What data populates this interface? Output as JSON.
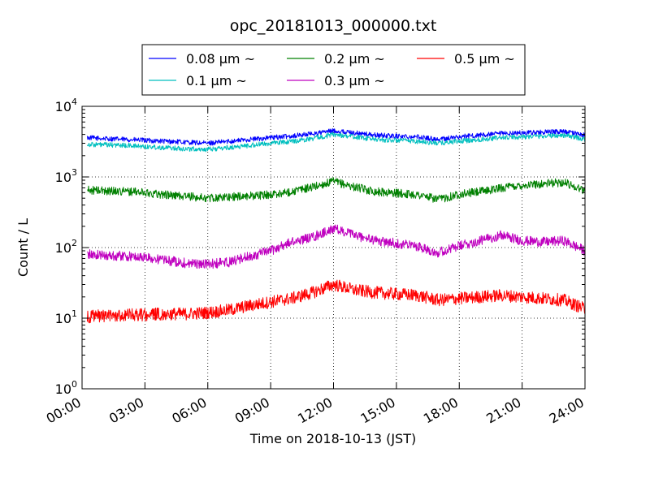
{
  "chart_data": {
    "type": "line",
    "title": "opc_20181013_000000.txt",
    "xlabel": "Time on 2018-10-13 (JST)",
    "ylabel": "Count / L",
    "yscale": "log",
    "xlim": [
      "00:00",
      "24:00"
    ],
    "ylim": [
      1,
      10000
    ],
    "x_ticks": [
      "00:00",
      "03:00",
      "06:00",
      "09:00",
      "12:00",
      "15:00",
      "18:00",
      "21:00",
      "24:00"
    ],
    "y_ticks": [
      {
        "value": 1,
        "base": "10",
        "exp": "0"
      },
      {
        "value": 10,
        "base": "10",
        "exp": "1"
      },
      {
        "value": 100,
        "base": "10",
        "exp": "2"
      },
      {
        "value": 1000,
        "base": "10",
        "exp": "3"
      },
      {
        "value": 10000,
        "base": "10",
        "exp": "4"
      }
    ],
    "grid": true,
    "legend_position": "top-center",
    "x": [
      "00:15",
      "01:00",
      "02:00",
      "03:00",
      "04:00",
      "05:00",
      "06:00",
      "07:00",
      "08:00",
      "09:00",
      "10:00",
      "11:00",
      "12:00",
      "13:00",
      "14:00",
      "15:00",
      "16:00",
      "17:00",
      "18:00",
      "19:00",
      "20:00",
      "21:00",
      "22:00",
      "23:00",
      "24:00"
    ],
    "series": [
      {
        "name": "0.08 μm ~",
        "color": "#0000ff",
        "values": [
          3600,
          3500,
          3400,
          3300,
          3200,
          3100,
          3000,
          3200,
          3400,
          3600,
          3800,
          4100,
          4500,
          4200,
          3900,
          3800,
          3700,
          3400,
          3700,
          3900,
          4100,
          4200,
          4300,
          4400,
          3900
        ]
      },
      {
        "name": "0.1 μm ~",
        "color": "#00bfbf",
        "values": [
          2900,
          2850,
          2800,
          2700,
          2600,
          2500,
          2450,
          2600,
          2800,
          3000,
          3200,
          3500,
          4000,
          3700,
          3400,
          3300,
          3200,
          3000,
          3200,
          3400,
          3600,
          3700,
          3800,
          3900,
          3400
        ]
      },
      {
        "name": "0.2 μm ~",
        "color": "#008000",
        "values": [
          650,
          640,
          630,
          600,
          560,
          530,
          500,
          520,
          540,
          560,
          620,
          720,
          860,
          720,
          620,
          590,
          560,
          480,
          570,
          620,
          700,
          760,
          800,
          840,
          640
        ]
      },
      {
        "name": "0.3 μm ~",
        "color": "#bf00bf",
        "values": [
          80,
          78,
          76,
          72,
          66,
          60,
          58,
          62,
          75,
          90,
          120,
          140,
          185,
          150,
          125,
          115,
          105,
          85,
          105,
          125,
          150,
          125,
          120,
          125,
          90
        ]
      },
      {
        "name": "0.5 μm ~",
        "color": "#ff0000",
        "values": [
          10.5,
          10.8,
          11,
          11.2,
          11.5,
          11.5,
          12,
          13,
          15,
          17,
          19,
          23,
          30,
          25,
          23,
          22,
          21,
          18,
          19,
          20,
          21,
          20,
          19,
          18,
          13.5
        ]
      }
    ]
  }
}
